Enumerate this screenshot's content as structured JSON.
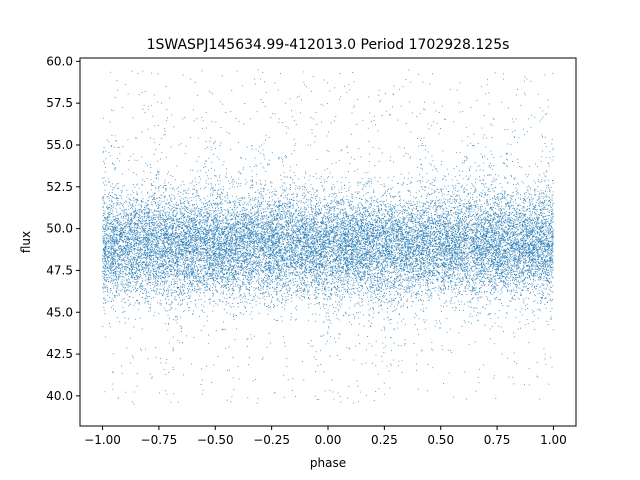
{
  "chart_data": {
    "type": "scatter",
    "title": "1SWASPJ145634.99-412013.0 Period 1702928.125s",
    "xlabel": "phase",
    "ylabel": "flux",
    "xlim": [
      -1.1,
      1.1
    ],
    "ylim": [
      38.2,
      60.2
    ],
    "xticks": [
      -1.0,
      -0.75,
      -0.5,
      -0.25,
      0.0,
      0.25,
      0.5,
      0.75,
      1.0
    ],
    "xtick_labels": [
      "−1.00",
      "−0.75",
      "−0.50",
      "−0.25",
      "0.00",
      "0.25",
      "0.50",
      "0.75",
      "1.00"
    ],
    "yticks": [
      40.0,
      42.5,
      45.0,
      47.5,
      50.0,
      52.5,
      55.0,
      57.5,
      60.0
    ],
    "ytick_labels": [
      "40.0",
      "42.5",
      "45.0",
      "47.5",
      "50.0",
      "52.5",
      "55.0",
      "57.5",
      "60.0"
    ],
    "grid": false,
    "marker_color": "#1f77b4",
    "phase_range": [
      -1.0,
      1.0
    ],
    "flux_median": 49.0,
    "core_flux_range": [
      45.5,
      52.5
    ],
    "outlier_flux_range": [
      39.5,
      59.5
    ],
    "bright_phases": [
      -0.98,
      -0.75,
      -0.52,
      -0.3,
      -0.18,
      0.45,
      0.62,
      0.7,
      0.82,
      0.98
    ],
    "faint_phases": [
      -0.68,
      -0.3,
      -0.18,
      0.02,
      0.22,
      0.3,
      0.62,
      0.68,
      0.82
    ]
  }
}
